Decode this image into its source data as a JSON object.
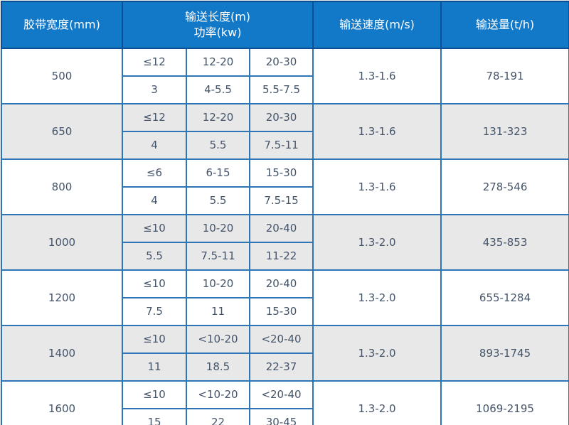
{
  "colors": {
    "header_bg": "#1278c8",
    "header_border": "#0a4f96",
    "grid_border": "#2e75b5",
    "outer_border": "#1e5c9e",
    "row_bg": "#ffffff",
    "row_alt_bg": "#e8e8e8",
    "header_text": "#ffffff",
    "body_text": "#44546a",
    "page_bg": "#ededed"
  },
  "chart_data": {
    "type": "table",
    "header": [
      "胶带宽度(mm)",
      "输送长度(m)\n功率(kw)",
      "输送速度(m/s)",
      "输送量(t/h)"
    ],
    "rows": [
      {
        "width": "500",
        "length": [
          "≤12",
          "12-20",
          "20-30"
        ],
        "power": [
          "3",
          "4-5.5",
          "5.5-7.5"
        ],
        "speed": "1.3-1.6",
        "capacity": "78-191"
      },
      {
        "width": "650",
        "length": [
          "≤12",
          "12-20",
          "20-30"
        ],
        "power": [
          "4",
          "5.5",
          "7.5-11"
        ],
        "speed": "1.3-1.6",
        "capacity": "131-323"
      },
      {
        "width": "800",
        "length": [
          "≤6",
          "6-15",
          "15-30"
        ],
        "power": [
          "4",
          "5.5",
          "7.5-15"
        ],
        "speed": "1.3-1.6",
        "capacity": "278-546"
      },
      {
        "width": "1000",
        "length": [
          "≤10",
          "10-20",
          "20-40"
        ],
        "power": [
          "5.5",
          "7.5-11",
          "11-22"
        ],
        "speed": "1.3-2.0",
        "capacity": "435-853"
      },
      {
        "width": "1200",
        "length": [
          "≤10",
          "10-20",
          "20-40"
        ],
        "power": [
          "7.5",
          "11",
          "15-30"
        ],
        "speed": "1.3-2.0",
        "capacity": "655-1284"
      },
      {
        "width": "1400",
        "length": [
          "≤10",
          "<10-20",
          "<20-40"
        ],
        "power": [
          "11",
          "18.5",
          "22-37"
        ],
        "speed": "1.3-2.0",
        "capacity": "893-1745"
      },
      {
        "width": "1600",
        "length": [
          "≤10",
          "<10-20",
          "<20-40"
        ],
        "power": [
          "15",
          "22",
          "30-45"
        ],
        "speed": "1.3-2.0",
        "capacity": "1069-2195"
      }
    ]
  }
}
